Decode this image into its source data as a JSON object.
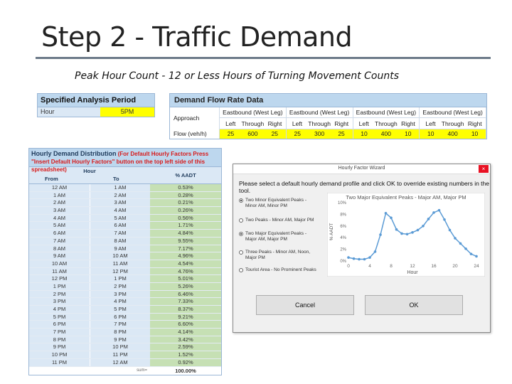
{
  "slide": {
    "title": "Step 2 - Traffic Demand",
    "subtitle": "Peak Hour Count - 12 or Less Hours of Turning Movement Counts"
  },
  "analysis_period": {
    "header": "Specified Analysis Period",
    "hour_label": "Hour",
    "hour_value": "5PM"
  },
  "demand_flow": {
    "header": "Demand Flow Rate Data",
    "approach_label": "Approach",
    "flow_label": "Flow (veh/h)",
    "groups": [
      {
        "name": "Eastbound (West Leg)",
        "moves": [
          "Left",
          "Through",
          "Right"
        ],
        "values": [
          "25",
          "600",
          "25"
        ]
      },
      {
        "name": "Eastbound (West Leg)",
        "moves": [
          "Left",
          "Through",
          "Right"
        ],
        "values": [
          "25",
          "300",
          "25"
        ]
      },
      {
        "name": "Eastbound (West Leg)",
        "moves": [
          "Left",
          "Through",
          "Right"
        ],
        "values": [
          "10",
          "400",
          "10"
        ]
      },
      {
        "name": "Eastbound (West Leg)",
        "moves": [
          "Left",
          "Through",
          "Right"
        ],
        "values": [
          "10",
          "400",
          "10"
        ]
      }
    ]
  },
  "hourly": {
    "title": "Hourly Demand Distribution",
    "note": "(For Default Hourly Factors Press \"Insert Default Hourly Factors\" button on the top left side of this spreadsheet)",
    "hour_label": "Hour",
    "from_label": "From",
    "to_label": "To",
    "pct_label": "% AADT",
    "rows": [
      {
        "from": "12 AM",
        "to": "1 AM",
        "pct": "0.53%"
      },
      {
        "from": "1 AM",
        "to": "2 AM",
        "pct": "0.28%"
      },
      {
        "from": "2 AM",
        "to": "3 AM",
        "pct": "0.21%"
      },
      {
        "from": "3 AM",
        "to": "4 AM",
        "pct": "0.26%"
      },
      {
        "from": "4 AM",
        "to": "5 AM",
        "pct": "0.56%"
      },
      {
        "from": "5 AM",
        "to": "6 AM",
        "pct": "1.71%"
      },
      {
        "from": "6 AM",
        "to": "7 AM",
        "pct": "4.84%"
      },
      {
        "from": "7 AM",
        "to": "8 AM",
        "pct": "9.55%"
      },
      {
        "from": "8 AM",
        "to": "9 AM",
        "pct": "7.17%"
      },
      {
        "from": "9 AM",
        "to": "10 AM",
        "pct": "4.96%"
      },
      {
        "from": "10 AM",
        "to": "11 AM",
        "pct": "4.54%"
      },
      {
        "from": "11 AM",
        "to": "12 PM",
        "pct": "4.76%"
      },
      {
        "from": "12 PM",
        "to": "1 PM",
        "pct": "5.01%"
      },
      {
        "from": "1 PM",
        "to": "2 PM",
        "pct": "5.26%"
      },
      {
        "from": "2 PM",
        "to": "3 PM",
        "pct": "6.46%"
      },
      {
        "from": "3 PM",
        "to": "4 PM",
        "pct": "7.33%"
      },
      {
        "from": "4 PM",
        "to": "5 PM",
        "pct": "8.37%"
      },
      {
        "from": "5 PM",
        "to": "6 PM",
        "pct": "9.21%"
      },
      {
        "from": "6 PM",
        "to": "7 PM",
        "pct": "6.60%"
      },
      {
        "from": "7 PM",
        "to": "8 PM",
        "pct": "4.14%"
      },
      {
        "from": "8 PM",
        "to": "9 PM",
        "pct": "3.42%"
      },
      {
        "from": "9 PM",
        "to": "10 PM",
        "pct": "2.59%"
      },
      {
        "from": "10 PM",
        "to": "11 PM",
        "pct": "1.52%"
      },
      {
        "from": "11 PM",
        "to": "12 AM",
        "pct": "0.92%"
      }
    ],
    "sum_label": "sum=",
    "sum_value": "100.00%"
  },
  "wizard": {
    "window_title": "Hourly Factor Wizard",
    "close_glyph": "×",
    "instruction": "Please select a default hourly demand profile and click OK to override existing numbers in the tool.",
    "options": [
      {
        "line1": "Two Minor Equivalent Peaks -",
        "line2": "Minor AM, Minor PM",
        "selected": true
      },
      {
        "line1": "Two Peaks - Minor AM, Major PM",
        "line2": "",
        "selected": false
      },
      {
        "line1": "Two Major Equivalent Peaks -",
        "line2": "Major AM, Major PM",
        "selected": true
      },
      {
        "line1": "Three Peaks - Minor AM, Noon,",
        "line2": "Major PM",
        "selected": false
      },
      {
        "line1": "Tourist Area - No Prominent Peaks",
        "line2": "",
        "selected": false
      }
    ],
    "cancel_label": "Cancel",
    "ok_label": "OK"
  },
  "chart_data": {
    "type": "line",
    "title": "Two Major Equivalent Peaks - Major AM, Major PM",
    "xlabel": "Hour",
    "ylabel": "% AADT",
    "x": [
      0,
      1,
      2,
      3,
      4,
      5,
      6,
      7,
      8,
      9,
      10,
      11,
      12,
      13,
      14,
      15,
      16,
      17,
      18,
      19,
      20,
      21,
      22,
      23,
      24
    ],
    "y": [
      0.6,
      0.4,
      0.3,
      0.3,
      0.6,
      1.6,
      4.5,
      8.2,
      7.4,
      5.4,
      4.7,
      4.6,
      4.9,
      5.3,
      6.0,
      7.2,
      8.3,
      8.7,
      7.1,
      5.3,
      3.9,
      3.0,
      2.1,
      1.2,
      0.8
    ],
    "xticks": [
      "0",
      "4",
      "8",
      "12",
      "16",
      "20",
      "24"
    ],
    "yticks": [
      "0%",
      "2%",
      "4%",
      "6%",
      "8%",
      "10%"
    ],
    "xlim": [
      0,
      24
    ],
    "ylim": [
      0,
      10
    ],
    "grid": false,
    "line_color": "#5b9bd5"
  }
}
